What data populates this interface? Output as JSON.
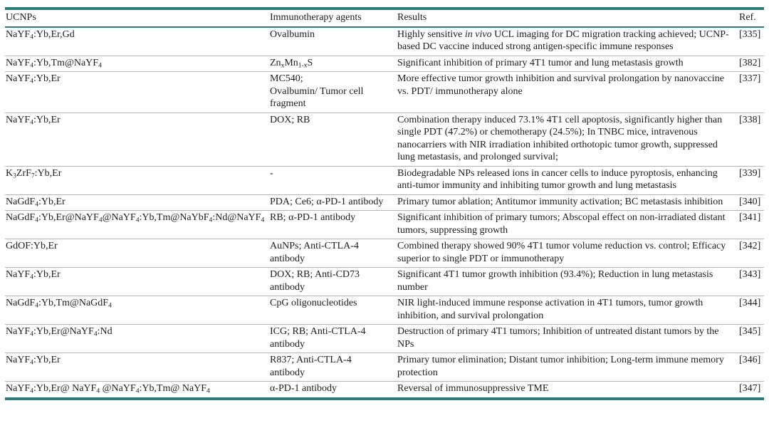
{
  "colors": {
    "accent_teal": "#2d7a78",
    "row_divider": "#b5b5b5",
    "text": "#1c1c1c",
    "background": "#ffffff"
  },
  "table": {
    "columns": [
      "UCNPs",
      "Immunotherapy agents",
      "Results",
      "Ref."
    ],
    "rows": [
      {
        "ucnp": "NaYF[sub]4[/sub]:Yb,Er,Gd",
        "agents": "Ovalbumin",
        "results": "Highly sensitive [i]in vivo[/i] UCL imaging for DC migration tracking achieved; UCNP-based DC vaccine induced strong antigen-specific immune responses",
        "ref": "[335]"
      },
      {
        "ucnp": "NaYF[sub]4[/sub]:Yb,Tm@NaYF[sub]4[/sub]",
        "agents": "Zn[sub]x[/sub]Mn[sub]1-x[/sub]S",
        "results": "Significant inhibition of primary 4T1 tumor and lung metastasis growth",
        "ref": "[382]"
      },
      {
        "ucnp": "NaYF[sub]4[/sub]:Yb,Er",
        "agents": "MC540;[br]Ovalbumin/ Tumor cell fragment",
        "results": "More effective tumor growth inhibition and survival prolongation by nanovaccine vs. PDT/ immunotherapy alone",
        "ref": "[337]"
      },
      {
        "ucnp": "NaYF[sub]4[/sub]:Yb,Er",
        "agents": "DOX; RB",
        "results": "Combination therapy induced 73.1% 4T1 cell apoptosis, significantly higher than single PDT (47.2%) or chemotherapy (24.5%); In TNBC mice, intravenous nanocarriers with NIR irradiation inhibited orthotopic tumor growth, suppressed lung metastasis, and prolonged survival;",
        "ref": "[338]"
      },
      {
        "ucnp": "K[sub]3[/sub]ZrF[sub]7[/sub]:Yb,Er",
        "agents": "-",
        "results": "Biodegradable NPs released ions in cancer cells to induce pyroptosis, enhancing anti-tumor immunity and inhibiting tumor growth and lung metastasis",
        "ref": "[339]"
      },
      {
        "ucnp": "NaGdF[sub]4[/sub]:Yb,Er",
        "agents": "PDA; Ce6; α-PD-1 antibody",
        "results": "Primary tumor ablation; Antitumor immunity activation; BC metastasis inhibition",
        "ref": "[340]"
      },
      {
        "ucnp": "NaGdF[sub]4[/sub]:Yb,Er@NaYF[sub]4[/sub]@NaYF[sub]4[/sub]:Yb,Tm@NaYbF[sub]4[/sub]:Nd@NaYF[sub]4[/sub]",
        "agents": "RB; α-PD-1 antibody",
        "results": "Significant inhibition of primary tumors; Abscopal effect on non-irradiated distant tumors, suppressing growth",
        "ref": "[341]"
      },
      {
        "ucnp": "GdOF:Yb,Er",
        "agents": "AuNPs; Anti-CTLA-4 antibody",
        "results": "Combined therapy showed 90% 4T1 tumor volume reduction vs. control; Efficacy superior to single PDT or immunotherapy",
        "ref": "[342]"
      },
      {
        "ucnp": "NaYF[sub]4[/sub]:Yb,Er",
        "agents": "DOX; RB; Anti-CD73 antibody",
        "results": "Significant 4T1 tumor growth inhibition (93.4%); Reduction in lung metastasis number",
        "ref": "[343]"
      },
      {
        "ucnp": "NaGdF[sub]4[/sub]:Yb,Tm@NaGdF[sub]4[/sub]",
        "agents": "CpG oligonucleotides",
        "results": "NIR light-induced immune response activation in 4T1 tumors, tumor growth inhibition, and survival prolongation",
        "ref": "[344]"
      },
      {
        "ucnp": "NaYF[sub]4[/sub]:Yb,Er@NaYF[sub]4[/sub]:Nd",
        "agents": "ICG; RB; Anti-CTLA-4 antibody",
        "results": "Destruction of primary 4T1 tumors; Inhibition of untreated distant tumors by the NPs",
        "ref": "[345]"
      },
      {
        "ucnp": "NaYF[sub]4[/sub]:Yb,Er",
        "agents": "R837; Anti-CTLA-4 antibody",
        "results": "Primary tumor elimination; Distant tumor inhibition; Long-term immune memory protection",
        "ref": "[346]"
      },
      {
        "ucnp": "NaYF[sub]4[/sub]:Yb,Er@ NaYF[sub]4[/sub] @NaYF[sub]4[/sub]:Yb,Tm@ NaYF[sub]4[/sub]",
        "agents": "α-PD-1 antibody",
        "results": "Reversal of immunosuppressive TME",
        "ref": "[347]"
      }
    ]
  }
}
